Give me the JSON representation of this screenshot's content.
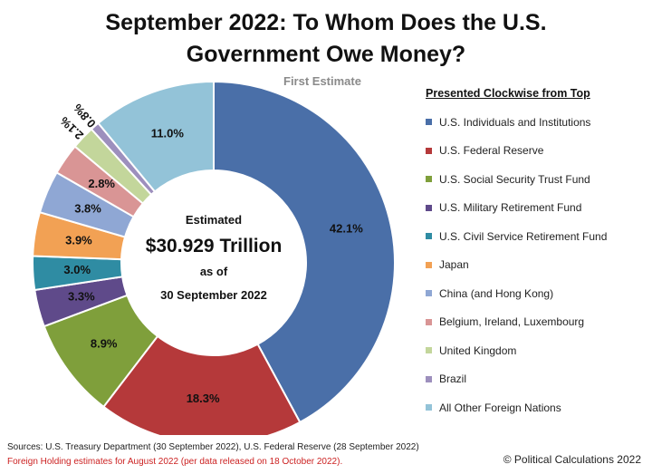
{
  "title_line1": "September 2022: To Whom Does the U.S.",
  "title_line2": "Government Owe Money?",
  "subtitle": "First Estimate",
  "center": {
    "line1": "Estimated",
    "line2": "$30.929 Trillion",
    "line3": "as of",
    "line4": "30 September 2022"
  },
  "legend_title": "Presented Clockwise from Top",
  "sources": "Sources: U.S. Treasury Department (30 September 2022), U.S. Federal Reserve (28 September 2022)",
  "foreign_note": "Foreign Holding estimates for August 2022 (per data released on 18 October 2022).",
  "copyright": "© Political Calculations 2022",
  "chart_data": {
    "type": "pie",
    "donut": true,
    "start": "top",
    "direction": "clockwise",
    "categories": [
      "U.S. Individuals and Institutions",
      "U.S. Federal Reserve",
      "U.S. Social Security Trust Fund",
      "U.S. Military Retirement Fund",
      "U.S. Civil Service Retirement Fund",
      "Japan",
      "China (and Hong Kong)",
      "Belgium, Ireland, Luxembourg",
      "United Kingdom",
      "Brazil",
      "All Other Foreign Nations"
    ],
    "values": [
      42.1,
      18.3,
      8.9,
      3.3,
      3.0,
      3.9,
      3.8,
      2.8,
      2.1,
      0.8,
      11.0
    ],
    "labels": [
      "42.1%",
      "18.3%",
      "8.9%",
      "3.3%",
      "3.0%",
      "3.9%",
      "3.8%",
      "2.8%",
      "2.1%",
      "0.8%",
      "11.0%"
    ],
    "colors": [
      "#4a6fa8",
      "#b5393a",
      "#7f9f3b",
      "#5f4a8a",
      "#2f8ca3",
      "#f2a154",
      "#8fa7d4",
      "#d99595",
      "#c3d69b",
      "#9d8fbd",
      "#93c3d8"
    ],
    "legend_position": "right"
  }
}
